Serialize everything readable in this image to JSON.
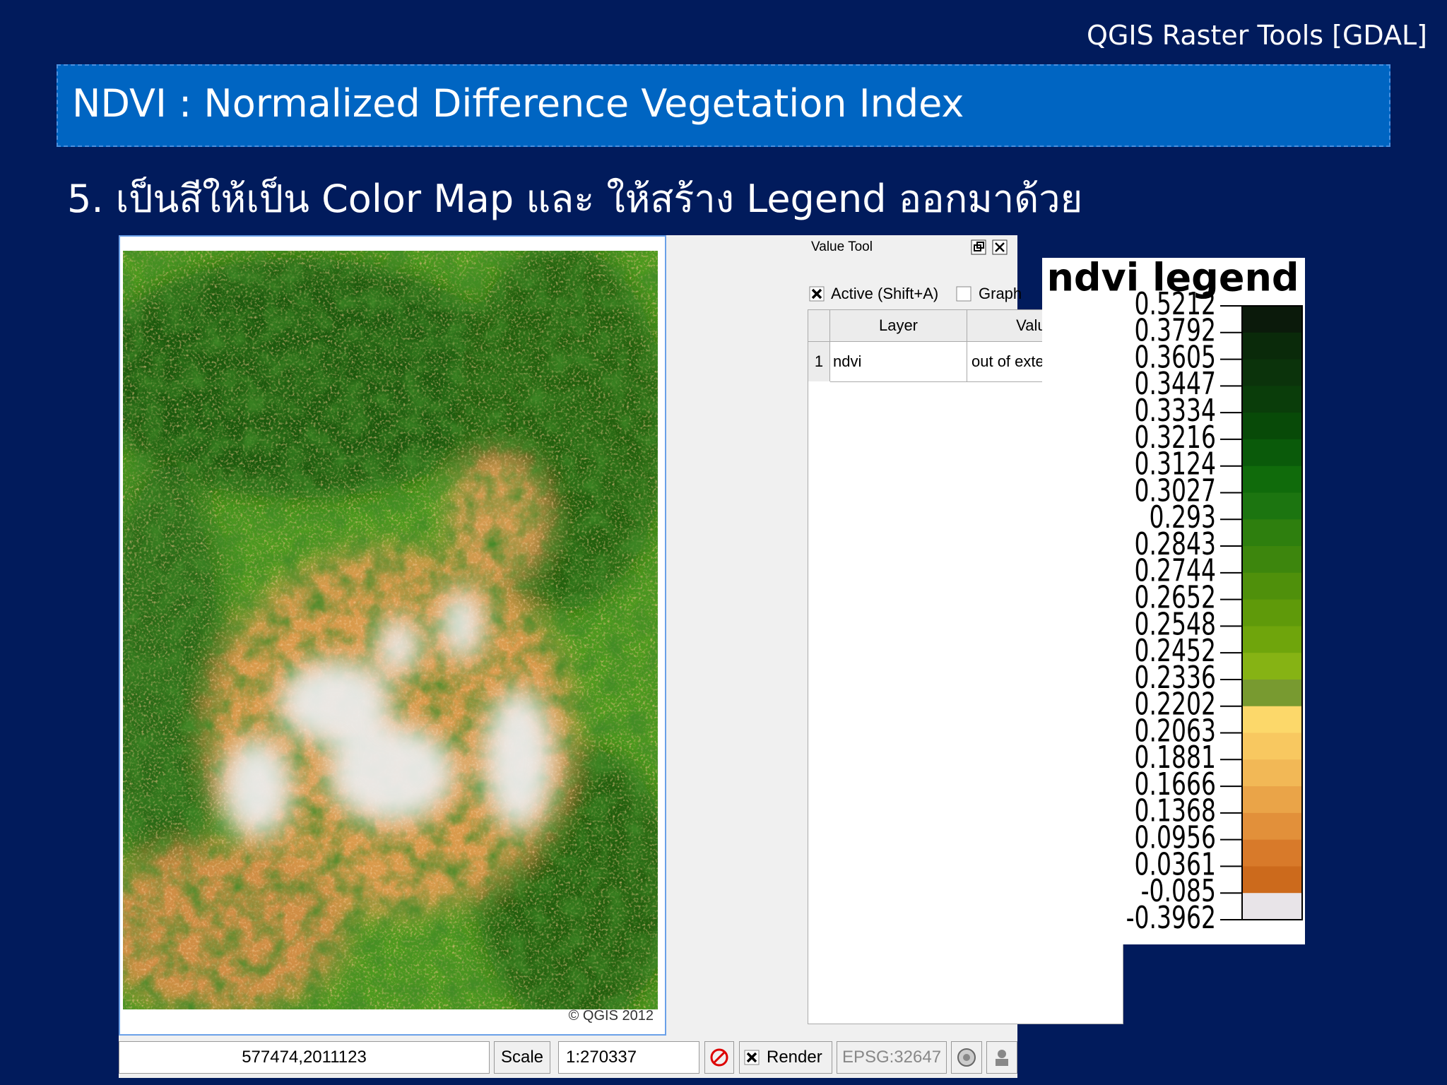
{
  "header": {
    "top_title": "QGIS Raster Tools [GDAL]",
    "title": "NDVI : Normalized Difference Vegetation Index"
  },
  "step_text": "5. เป็นสีให้เป็น Color Map และ ให้สร้าง Legend ออกมาด้วย",
  "map": {
    "copyright": "© QGIS 2012"
  },
  "value_tool": {
    "title": "Value Tool",
    "active_label": "Active (Shift+A)",
    "graph_label": "Graph",
    "table": {
      "headers": [
        "Layer",
        "Value"
      ],
      "rows": [
        [
          "1",
          "ndvi",
          "out of extent"
        ]
      ]
    }
  },
  "status_bar": {
    "coordinate": "577474,2011123",
    "scale_label": "Scale",
    "scale_value": "1:270337",
    "render_label": "Render",
    "crs": "EPSG:32647"
  },
  "legend": {
    "title": "ndvi legend",
    "labels": [
      "0.5212",
      "0.3792",
      "0.3605",
      "0.3447",
      "0.3334",
      "0.3216",
      "0.3124",
      "0.3027",
      "0.293",
      "0.2843",
      "0.2744",
      "0.2652",
      "0.2548",
      "0.2452",
      "0.2336",
      "0.2202",
      "0.2063",
      "0.1881",
      "0.1666",
      "0.1368",
      "0.0956",
      "0.0361",
      "-0.085",
      "-0.3962"
    ],
    "colors": [
      "#0b1a0b",
      "#0a2a0a",
      "#0b330b",
      "#0a3d0a",
      "#084a08",
      "#0a5a0a",
      "#106b0b",
      "#1c7510",
      "#2e7f0e",
      "#3d860d",
      "#4f900b",
      "#5f9a0a",
      "#6fa50c",
      "#86b314",
      "#789a30",
      "#fcd86a",
      "#f8c860",
      "#f2b856",
      "#eaa448",
      "#e2903a",
      "#d87a2a",
      "#cc6a1c",
      "#e8e4e8"
    ]
  }
}
